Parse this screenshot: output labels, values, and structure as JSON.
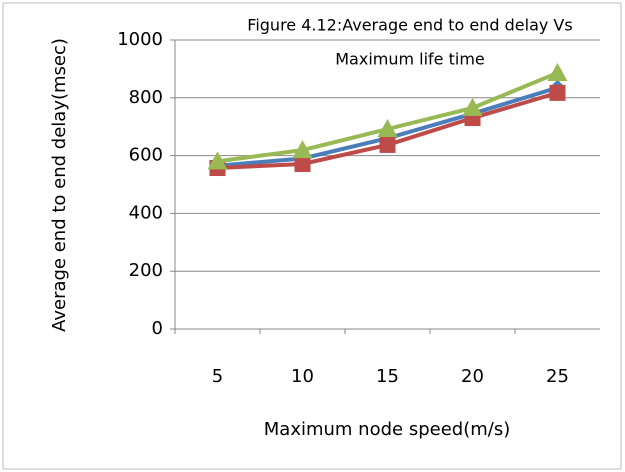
{
  "chart_data": {
    "type": "line",
    "title": [
      "Figure 4.12:Average end to end delay Vs",
      "Maximum life time"
    ],
    "x_label": "Maximum node speed(m/s)",
    "y_label": "Average end to end delay(msec)",
    "categories": [
      "5",
      "10",
      "15",
      "20",
      "25"
    ],
    "series": [
      {
        "color": "#4a7ebb",
        "marker": "diamond",
        "values": [
          565,
          590,
          660,
          745,
          835
        ]
      },
      {
        "color": "#be4b48",
        "marker": "square",
        "values": [
          557,
          571,
          637,
          730,
          817
        ]
      },
      {
        "color": "#98b954",
        "marker": "triangle",
        "values": [
          580,
          619,
          692,
          765,
          886
        ]
      }
    ],
    "ylim": [
      0,
      1000
    ],
    "yticks": [
      0,
      200,
      400,
      600,
      800,
      1000
    ],
    "grid": true
  }
}
